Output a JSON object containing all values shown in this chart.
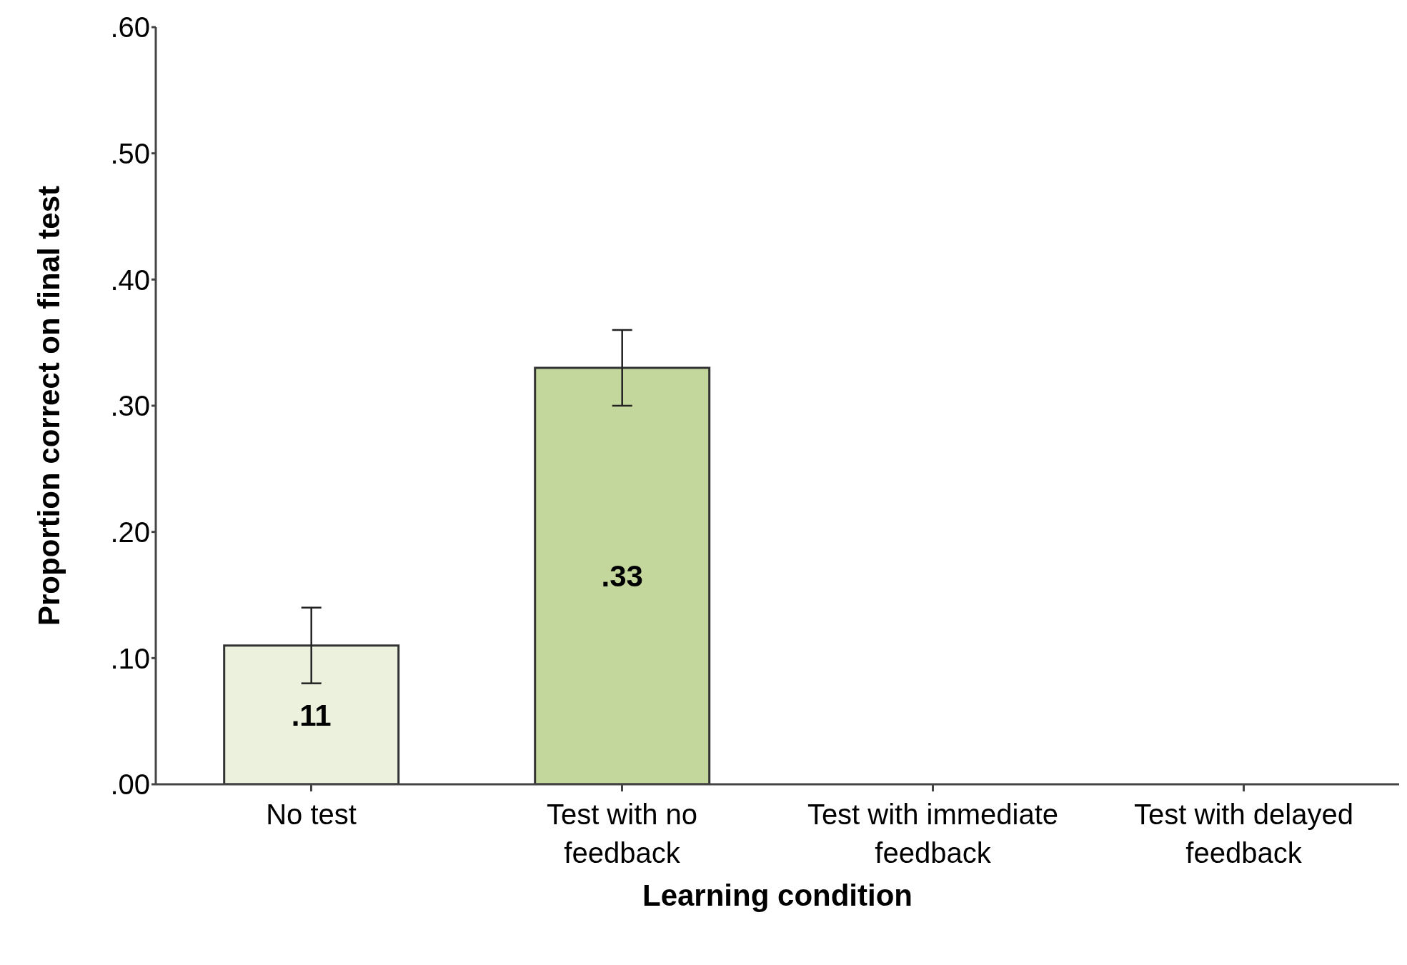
{
  "chart_data": {
    "type": "bar",
    "categories": [
      "No test",
      "Test with no feedback",
      "Test with immediate feedback",
      "Test with delayed feedback"
    ],
    "values": [
      0.11,
      0.33,
      null,
      null
    ],
    "colors": [
      "#ebf1dd",
      "#c3d69b",
      null,
      null
    ],
    "errors": [
      0.03,
      0.03,
      null,
      null
    ],
    "value_labels": [
      ".11",
      ".33",
      null,
      null
    ],
    "xlabel": "Learning condition",
    "ylabel": "Proportion correct on final test",
    "ylim": [
      0,
      0.6
    ],
    "yticks": [
      {
        "value": 0,
        "label": ".00"
      },
      {
        "value": 0.1,
        "label": ".10"
      },
      {
        "value": 0.2,
        "label": ".20"
      },
      {
        "value": 0.3,
        "label": ".30"
      },
      {
        "value": 0.4,
        "label": ".40"
      },
      {
        "value": 0.5,
        "label": ".50"
      },
      {
        "value": 0.6,
        "label": ".60"
      }
    ],
    "grid": false,
    "legend": false
  }
}
